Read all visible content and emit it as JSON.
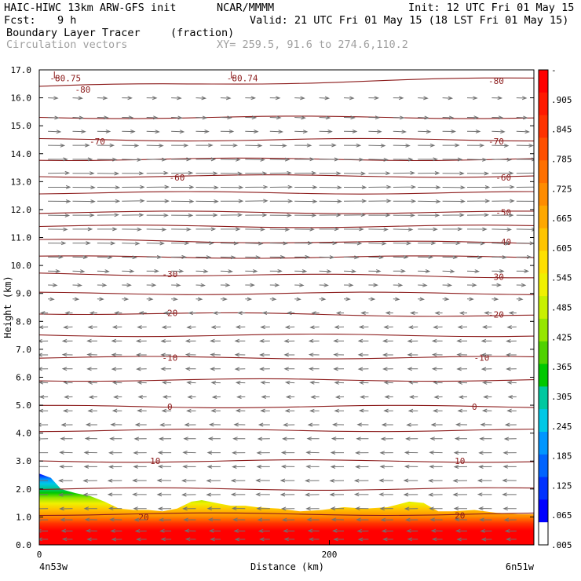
{
  "header": {
    "model": "HAIC-HIWC 13km ARW-GFS init",
    "org": "NCAR/MMMM",
    "init": "Init: 12 UTC Fri 01 May 15",
    "fcst_label": "Fcst:",
    "fcst_value": "9 h",
    "valid": "Valid: 21 UTC Fri 01 May 15 (18 LST Fri 01 May 15)",
    "field": "Boundary Layer Tracer",
    "units": "(fraction)",
    "vectors": "Circulation vectors",
    "xy": "XY= 259.5, 91.6 to 274.6,110.2"
  },
  "chart_data": {
    "type": "heatmap",
    "title": "Boundary Layer Tracer (fraction)",
    "xlabel": "Distance (km)",
    "ylabel": "Height (km)",
    "xlim": [
      0,
      341
    ],
    "ylim": [
      0.0,
      17.0
    ],
    "x_ticks": [
      {
        "value": 0,
        "label": "0"
      },
      {
        "value": 200,
        "label": "200"
      }
    ],
    "x_end_labels": {
      "left": "4n53w",
      "right": "6n51w"
    },
    "y_ticks": [
      "0.0",
      "1.0",
      "2.0",
      "3.0",
      "4.0",
      "5.0",
      "6.0",
      "7.0",
      "8.0",
      "9.0",
      "10.0",
      "11.0",
      "12.0",
      "13.0",
      "14.0",
      "15.0",
      "16.0",
      "17.0"
    ],
    "colorbar": {
      "labels": [
        "-",
        ".905",
        ".845",
        ".785",
        ".725",
        ".665",
        ".605",
        ".545",
        ".485",
        ".425",
        ".365",
        ".305",
        ".245",
        ".185",
        ".125",
        ".065",
        ".005"
      ],
      "colors": [
        "#ff0000",
        "#ff1a00",
        "#ff3300",
        "#ff5000",
        "#ff7000",
        "#ff8c00",
        "#ffa800",
        "#ffc400",
        "#ffe000",
        "#f0f000",
        "#c8f000",
        "#96e600",
        "#50d200",
        "#00c800",
        "#00c8a0",
        "#00c8e6",
        "#0096ff",
        "#0064ff",
        "#0032ff",
        "#0000ff",
        "#ffffff"
      ]
    },
    "temperature_contours": [
      {
        "value": -80.75,
        "label": "-80.75"
      },
      {
        "value": -80.74,
        "label": "-80.74"
      },
      {
        "value": -80,
        "label": "-80",
        "left_y": 16.4,
        "right_y": 16.7
      },
      {
        "value": -70,
        "label": "-70",
        "left_y": 14.5,
        "right_y": 14.5
      },
      {
        "value": -60,
        "label": "-60",
        "left_y": 13.2,
        "right_y": 13.2
      },
      {
        "value": -50,
        "label": "-50",
        "left_y": 11.9,
        "right_y": 11.9
      },
      {
        "value": -40,
        "label": "-40",
        "left_y": 10.9,
        "right_y": 10.8
      },
      {
        "value": -30,
        "label": "-30",
        "left_y": 9.7,
        "right_y": 9.6
      },
      {
        "value": -20,
        "label": "-20",
        "left_y": 8.3,
        "right_y": 8.2
      },
      {
        "value": -10,
        "label": "-10",
        "left_y": 6.7,
        "right_y": 6.7
      },
      {
        "value": 0,
        "label": "0",
        "left_y": 4.95,
        "right_y": 4.95
      },
      {
        "value": 10,
        "label": "10",
        "left_y": 3.0,
        "right_y": 3.0
      },
      {
        "value": 20,
        "label": "20",
        "left_y": 1.1,
        "right_y": 1.1
      }
    ],
    "extra_contour_heights": [
      15.3,
      13.8,
      12.6,
      11.4,
      10.3,
      9.0,
      7.5,
      5.9,
      4.1,
      2.0
    ],
    "pbl_top_km": [
      [
        0,
        2.55
      ],
      [
        8,
        2.4
      ],
      [
        15,
        2.0
      ],
      [
        25,
        1.85
      ],
      [
        35,
        1.75
      ],
      [
        45,
        1.55
      ],
      [
        55,
        1.3
      ],
      [
        65,
        1.25
      ],
      [
        75,
        1.25
      ],
      [
        85,
        1.2
      ],
      [
        95,
        1.3
      ],
      [
        105,
        1.55
      ],
      [
        112,
        1.6
      ],
      [
        122,
        1.5
      ],
      [
        132,
        1.4
      ],
      [
        142,
        1.4
      ],
      [
        150,
        1.35
      ],
      [
        165,
        1.3
      ],
      [
        180,
        1.2
      ],
      [
        195,
        1.25
      ],
      [
        210,
        1.35
      ],
      [
        225,
        1.3
      ],
      [
        240,
        1.35
      ],
      [
        255,
        1.55
      ],
      [
        265,
        1.5
      ],
      [
        275,
        1.2
      ],
      [
        285,
        1.2
      ],
      [
        300,
        1.25
      ],
      [
        315,
        1.15
      ],
      [
        330,
        1.1
      ],
      [
        341,
        1.1
      ]
    ],
    "wind_rows_km": [
      {
        "height": 16.0,
        "dir": 0.15,
        "len": 0.35
      },
      {
        "height": 15.3,
        "dir": 0.15,
        "len": 0.4
      },
      {
        "height": 14.8,
        "dir": 0.1,
        "len": 0.5
      },
      {
        "height": 14.3,
        "dir": 0.05,
        "len": 0.7
      },
      {
        "height": 13.8,
        "dir": 0.05,
        "len": 0.85
      },
      {
        "height": 13.3,
        "dir": 0.0,
        "len": 0.95
      },
      {
        "height": 12.8,
        "dir": 0.0,
        "len": 1.0
      },
      {
        "height": 12.3,
        "dir": 0.0,
        "len": 1.0
      },
      {
        "height": 11.8,
        "dir": 0.0,
        "len": 0.95
      },
      {
        "height": 11.3,
        "dir": 0.05,
        "len": 0.85
      },
      {
        "height": 10.8,
        "dir": 0.05,
        "len": 0.75
      },
      {
        "height": 10.3,
        "dir": 0.05,
        "len": 0.6
      },
      {
        "height": 9.8,
        "dir": 0.1,
        "len": 0.45
      },
      {
        "height": 9.3,
        "dir": 0.1,
        "len": 0.3
      },
      {
        "height": 8.8,
        "dir": 0.2,
        "len": 0.15
      },
      {
        "height": 8.3,
        "dir": 3.14,
        "len": 0.2
      },
      {
        "height": 7.8,
        "dir": 3.0,
        "len": 0.3
      },
      {
        "height": 7.3,
        "dir": 3.1,
        "len": 0.35
      },
      {
        "height": 6.8,
        "dir": 3.2,
        "len": 0.35
      },
      {
        "height": 6.3,
        "dir": 3.1,
        "len": 0.35
      },
      {
        "height": 5.8,
        "dir": 3.3,
        "len": 0.3
      },
      {
        "height": 5.3,
        "dir": 3.0,
        "len": 0.25
      },
      {
        "height": 4.8,
        "dir": 3.14,
        "len": 0.3
      },
      {
        "height": 4.3,
        "dir": 3.14,
        "len": 0.4
      },
      {
        "height": 3.8,
        "dir": 3.14,
        "len": 0.45
      },
      {
        "height": 3.3,
        "dir": 3.14,
        "len": 0.5
      },
      {
        "height": 2.8,
        "dir": 3.14,
        "len": 0.5
      },
      {
        "height": 2.3,
        "dir": 3.14,
        "len": 0.55
      },
      {
        "height": 1.8,
        "dir": 3.14,
        "len": 0.55
      },
      {
        "height": 1.3,
        "dir": 3.14,
        "len": 0.5
      },
      {
        "height": 0.9,
        "dir": 3.14,
        "len": 0.45
      },
      {
        "height": 0.5,
        "dir": 3.14,
        "len": 0.4
      },
      {
        "height": 0.2,
        "dir": 3.14,
        "len": 0.35
      }
    ],
    "wind_columns_km": [
      6,
      23,
      40,
      57,
      74,
      91,
      108,
      125,
      142,
      159,
      176,
      193,
      210,
      227,
      244,
      261,
      278,
      295,
      312,
      329
    ]
  }
}
